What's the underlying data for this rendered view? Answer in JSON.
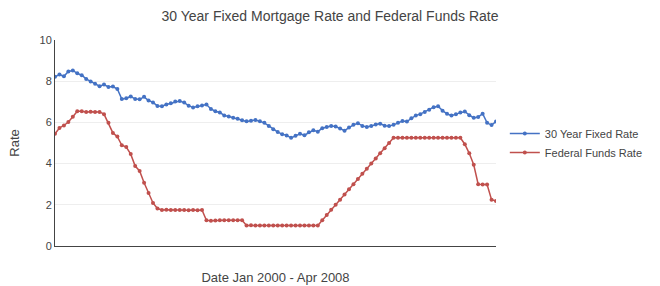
{
  "chart_data": {
    "type": "line",
    "title": "30 Year Fixed Mortgage Rate and Federal Funds Rate",
    "xlabel": "Date Jan 2000 - Apr 2008",
    "ylabel": "Rate",
    "categories": [
      null,
      null,
      null,
      null,
      null,
      null,
      null,
      null,
      null,
      null,
      null,
      null,
      null,
      null,
      null,
      null,
      null,
      null,
      null,
      null,
      null,
      null,
      null,
      null,
      null,
      null,
      null,
      null,
      null,
      null,
      null,
      null,
      null,
      null,
      null,
      null,
      null,
      null,
      null,
      null,
      null,
      null,
      null,
      null,
      null,
      null,
      null,
      null,
      null,
      null,
      null,
      null,
      null,
      null,
      null,
      null,
      null,
      null,
      null,
      null,
      null,
      null,
      null,
      null,
      null,
      null,
      null,
      null,
      null,
      null,
      null,
      null,
      null,
      null,
      null,
      null,
      null,
      null,
      null,
      null,
      null,
      null,
      null,
      null,
      null,
      null,
      null,
      null,
      null,
      null,
      null,
      null,
      null,
      null,
      null,
      null,
      null,
      null,
      null,
      null
    ],
    "series": [
      {
        "name": "30 Year Fixed Rate",
        "color": "#4472C4",
        "marker": "circle",
        "values": [
          8.21,
          8.32,
          8.24,
          8.47,
          8.52,
          8.38,
          8.29,
          8.11,
          7.99,
          7.88,
          7.76,
          7.84,
          7.72,
          7.74,
          7.62,
          7.13,
          7.17,
          7.26,
          7.13,
          7.12,
          7.24,
          7.06,
          6.97,
          6.8,
          6.79,
          6.87,
          6.93,
          7.01,
          7.04,
          6.96,
          6.81,
          6.72,
          6.78,
          6.82,
          6.87,
          6.65,
          6.54,
          6.48,
          6.34,
          6.29,
          6.23,
          6.18,
          6.11,
          6.05,
          6.08,
          6.12,
          6.05,
          5.98,
          5.83,
          5.67,
          5.53,
          5.43,
          5.37,
          5.25,
          5.35,
          5.45,
          5.38,
          5.52,
          5.62,
          5.55,
          5.72,
          5.78,
          5.83,
          5.8,
          5.7,
          5.6,
          5.75,
          5.88,
          5.96,
          5.83,
          5.78,
          5.82,
          5.9,
          5.94,
          5.84,
          5.82,
          5.88,
          5.98,
          6.07,
          6.04,
          6.2,
          6.34,
          6.4,
          6.5,
          6.62,
          6.74,
          6.78,
          6.57,
          6.42,
          6.33,
          6.4,
          6.48,
          6.53,
          6.35,
          6.22,
          6.26,
          6.42,
          5.98,
          5.87,
          6.04
        ]
      },
      {
        "name": "Federal Funds Rate",
        "color": "#C0504D",
        "marker": "circle",
        "values": [
          5.45,
          5.73,
          5.85,
          6.02,
          6.27,
          6.54,
          6.54,
          6.5,
          6.52,
          6.51,
          6.51,
          6.4,
          5.98,
          5.49,
          5.31,
          4.89,
          4.8,
          4.46,
          3.88,
          3.64,
          3.07,
          2.57,
          2.09,
          1.82,
          1.75,
          1.76,
          1.75,
          1.75,
          1.75,
          1.75,
          1.73,
          1.75,
          1.73,
          1.75,
          1.25,
          1.22,
          1.24,
          1.25,
          1.25,
          1.25,
          1.25,
          1.25,
          1.25,
          1.0,
          1.01,
          1.0,
          1.0,
          1.0,
          1.0,
          1.0,
          1.0,
          1.0,
          1.0,
          1.0,
          1.0,
          1.0,
          1.0,
          1.0,
          1.0,
          1.0,
          1.25,
          1.5,
          1.76,
          2.0,
          2.25,
          2.5,
          2.75,
          3.0,
          3.25,
          3.51,
          3.75,
          4.0,
          4.25,
          4.5,
          4.74,
          5.0,
          5.25,
          5.25,
          5.25,
          5.25,
          5.25,
          5.25,
          5.25,
          5.25,
          5.25,
          5.25,
          5.25,
          5.25,
          5.25,
          5.25,
          5.25,
          5.25,
          4.94,
          4.5,
          3.94,
          3.0,
          2.98,
          2.98,
          2.25,
          2.18
        ]
      }
    ],
    "ylim": [
      0,
      10
    ],
    "yticks": [
      0,
      2,
      4,
      6,
      8,
      10
    ],
    "grid": "y",
    "legend": "right",
    "tick_labels": "y"
  }
}
